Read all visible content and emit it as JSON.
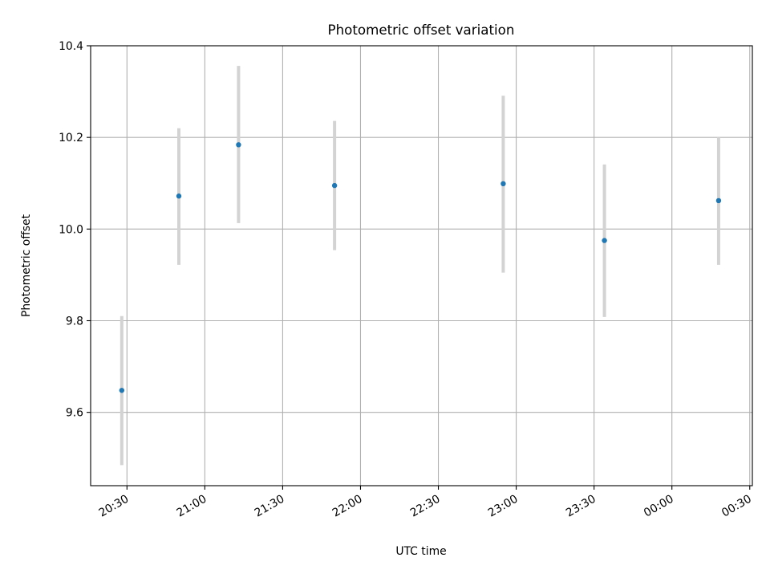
{
  "chart_data": {
    "type": "scatter",
    "title": "Photometric offset variation",
    "xlabel": "UTC time",
    "ylabel": "Photometric offset",
    "x_unit": "time",
    "x_ticks": [
      "20:30",
      "21:00",
      "21:30",
      "22:00",
      "22:30",
      "23:00",
      "23:30",
      "00:00",
      "00:30"
    ],
    "x_range": [
      "20:16",
      "00:31"
    ],
    "yticks": [
      9.6,
      9.8,
      10.0,
      10.2,
      10.4
    ],
    "ylim": [
      9.44,
      10.4
    ],
    "grid": true,
    "colors": {
      "marker": "#1f77b4",
      "errorbar": "#d3d3d3"
    },
    "points": [
      {
        "x": "20:28",
        "y": 9.648,
        "yerr_low": 9.485,
        "yerr_high": 9.81
      },
      {
        "x": "20:50",
        "y": 10.072,
        "yerr_low": 9.922,
        "yerr_high": 10.22
      },
      {
        "x": "21:13",
        "y": 10.184,
        "yerr_low": 10.013,
        "yerr_high": 10.356
      },
      {
        "x": "21:50",
        "y": 10.095,
        "yerr_low": 9.954,
        "yerr_high": 10.236
      },
      {
        "x": "22:55",
        "y": 10.099,
        "yerr_low": 9.905,
        "yerr_high": 10.291
      },
      {
        "x": "23:34",
        "y": 9.975,
        "yerr_low": 9.808,
        "yerr_high": 10.141
      },
      {
        "x": "00:18",
        "y": 10.062,
        "yerr_low": 9.922,
        "yerr_high": 10.2
      }
    ]
  }
}
